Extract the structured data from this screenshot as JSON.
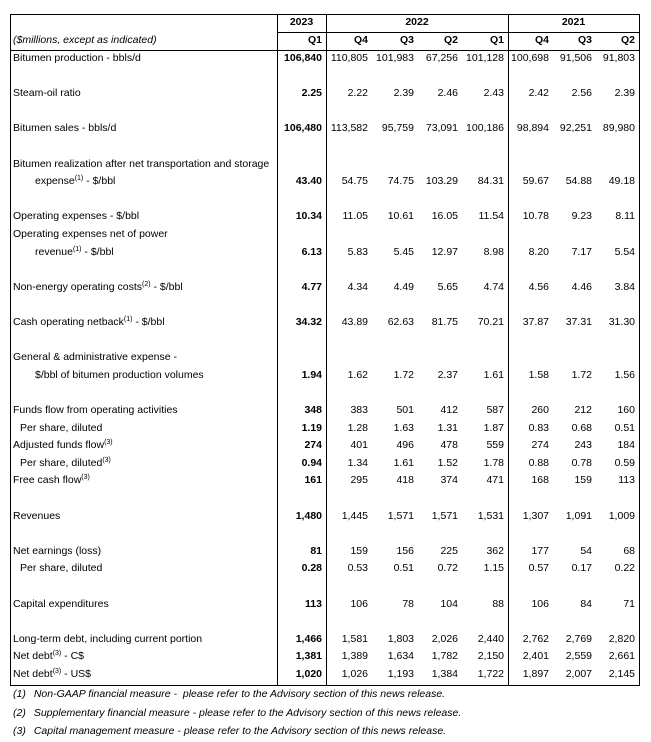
{
  "table": {
    "units_note": "($millions, except as indicated)",
    "years": [
      {
        "label": "2023",
        "quarters": [
          "Q1"
        ]
      },
      {
        "label": "2022",
        "quarters": [
          "Q4",
          "Q3",
          "Q2",
          "Q1"
        ]
      },
      {
        "label": "2021",
        "quarters": [
          "Q4",
          "Q3",
          "Q2"
        ]
      }
    ],
    "groups": [
      [
        {
          "label": [
            "Bitumen production - bbls/d"
          ],
          "values": [
            "106,840",
            "110,805",
            "101,983",
            "67,256",
            "101,128",
            "100,698",
            "91,506",
            "91,803"
          ]
        }
      ],
      [
        {
          "label": [
            "Steam-oil ratio"
          ],
          "values": [
            "2.25",
            "2.22",
            "2.39",
            "2.46",
            "2.43",
            "2.42",
            "2.56",
            "2.39"
          ]
        }
      ],
      [
        {
          "label": [
            "Bitumen sales - bbls/d"
          ],
          "values": [
            "106,480",
            "113,582",
            "95,759",
            "73,091",
            "100,186",
            "98,894",
            "92,251",
            "89,980"
          ]
        }
      ],
      [
        {
          "label": [
            "Bitumen realization after net transportation and storage",
            "expense"
          ],
          "sup": "(1)",
          "label_end": " - $/bbl",
          "values": [
            "43.40",
            "54.75",
            "74.75",
            "103.29",
            "84.31",
            "59.67",
            "54.88",
            "49.18"
          ]
        }
      ],
      [
        {
          "label": [
            "Operating expenses - $/bbl"
          ],
          "values": [
            "10.34",
            "11.05",
            "10.61",
            "16.05",
            "11.54",
            "10.78",
            "9.23",
            "8.11"
          ]
        },
        {
          "label": [
            "Operating expenses net of power",
            "revenue"
          ],
          "sup": "(1)",
          "label_end": " - $/bbl",
          "values": [
            "6.13",
            "5.83",
            "5.45",
            "12.97",
            "8.98",
            "8.20",
            "7.17",
            "5.54"
          ]
        }
      ],
      [
        {
          "label": [
            "Non-energy operating costs"
          ],
          "sup": "(2)",
          "label_end": " - $/bbl",
          "values": [
            "4.77",
            "4.34",
            "4.49",
            "5.65",
            "4.74",
            "4.56",
            "4.46",
            "3.84"
          ]
        }
      ],
      [
        {
          "label": [
            "Cash operating netback"
          ],
          "sup": "(1)",
          "label_end": " - $/bbl",
          "values": [
            "34.32",
            "43.89",
            "62.63",
            "81.75",
            "70.21",
            "37.87",
            "37.31",
            "31.30"
          ]
        }
      ],
      [
        {
          "label": [
            "General & administrative expense -",
            "$/bbl of bitumen production volumes"
          ],
          "values": [
            "1.94",
            "1.62",
            "1.72",
            "2.37",
            "1.61",
            "1.58",
            "1.72",
            "1.56"
          ]
        }
      ],
      [
        {
          "label": [
            "Funds flow from operating activities"
          ],
          "values": [
            "348",
            "383",
            "501",
            "412",
            "587",
            "260",
            "212",
            "160"
          ]
        },
        {
          "label": [
            "Per share, diluted"
          ],
          "indent": true,
          "values": [
            "1.19",
            "1.28",
            "1.63",
            "1.31",
            "1.87",
            "0.83",
            "0.68",
            "0.51"
          ]
        },
        {
          "label": [
            "Adjusted funds flow"
          ],
          "sup": "(3)",
          "values": [
            "274",
            "401",
            "496",
            "478",
            "559",
            "274",
            "243",
            "184"
          ]
        },
        {
          "label": [
            "Per share, diluted"
          ],
          "sup": "(3)",
          "indent": true,
          "values": [
            "0.94",
            "1.34",
            "1.61",
            "1.52",
            "1.78",
            "0.88",
            "0.78",
            "0.59"
          ]
        },
        {
          "label": [
            "Free cash flow"
          ],
          "sup": "(3)",
          "values": [
            "161",
            "295",
            "418",
            "374",
            "471",
            "168",
            "159",
            "113"
          ]
        }
      ],
      [
        {
          "label": [
            "Revenues"
          ],
          "values": [
            "1,480",
            "1,445",
            "1,571",
            "1,571",
            "1,531",
            "1,307",
            "1,091",
            "1,009"
          ]
        }
      ],
      [
        {
          "label": [
            "Net earnings (loss)"
          ],
          "values": [
            "81",
            "159",
            "156",
            "225",
            "362",
            "177",
            "54",
            "68"
          ]
        },
        {
          "label": [
            "Per share, diluted"
          ],
          "indent": true,
          "values": [
            "0.28",
            "0.53",
            "0.51",
            "0.72",
            "1.15",
            "0.57",
            "0.17",
            "0.22"
          ]
        }
      ],
      [
        {
          "label": [
            "Capital expenditures"
          ],
          "values": [
            "113",
            "106",
            "78",
            "104",
            "88",
            "106",
            "84",
            "71"
          ]
        }
      ],
      [
        {
          "label": [
            "Long-term debt, including current portion"
          ],
          "values": [
            "1,466",
            "1,581",
            "1,803",
            "2,026",
            "2,440",
            "2,762",
            "2,769",
            "2,820"
          ]
        },
        {
          "label": [
            "Net debt"
          ],
          "sup": "(3)",
          "label_end": " - C$",
          "values": [
            "1,381",
            "1,389",
            "1,634",
            "1,782",
            "2,150",
            "2,401",
            "2,559",
            "2,661"
          ]
        },
        {
          "label": [
            "Net debt"
          ],
          "sup": "(3)",
          "label_end": " - US$",
          "values": [
            "1,020",
            "1,026",
            "1,193",
            "1,384",
            "1,722",
            "1,897",
            "2,007",
            "2,145"
          ]
        }
      ]
    ]
  },
  "footnotes": [
    {
      "marker": "(1)",
      "text": "Non-GAAP financial measure -  please refer to the Advisory section of this news release."
    },
    {
      "marker": "(2)",
      "text": "Supplementary financial measure - please refer to the Advisory section of this news release."
    },
    {
      "marker": "(3)",
      "text": "Capital management measure - please refer to the Advisory section of this news release."
    }
  ]
}
